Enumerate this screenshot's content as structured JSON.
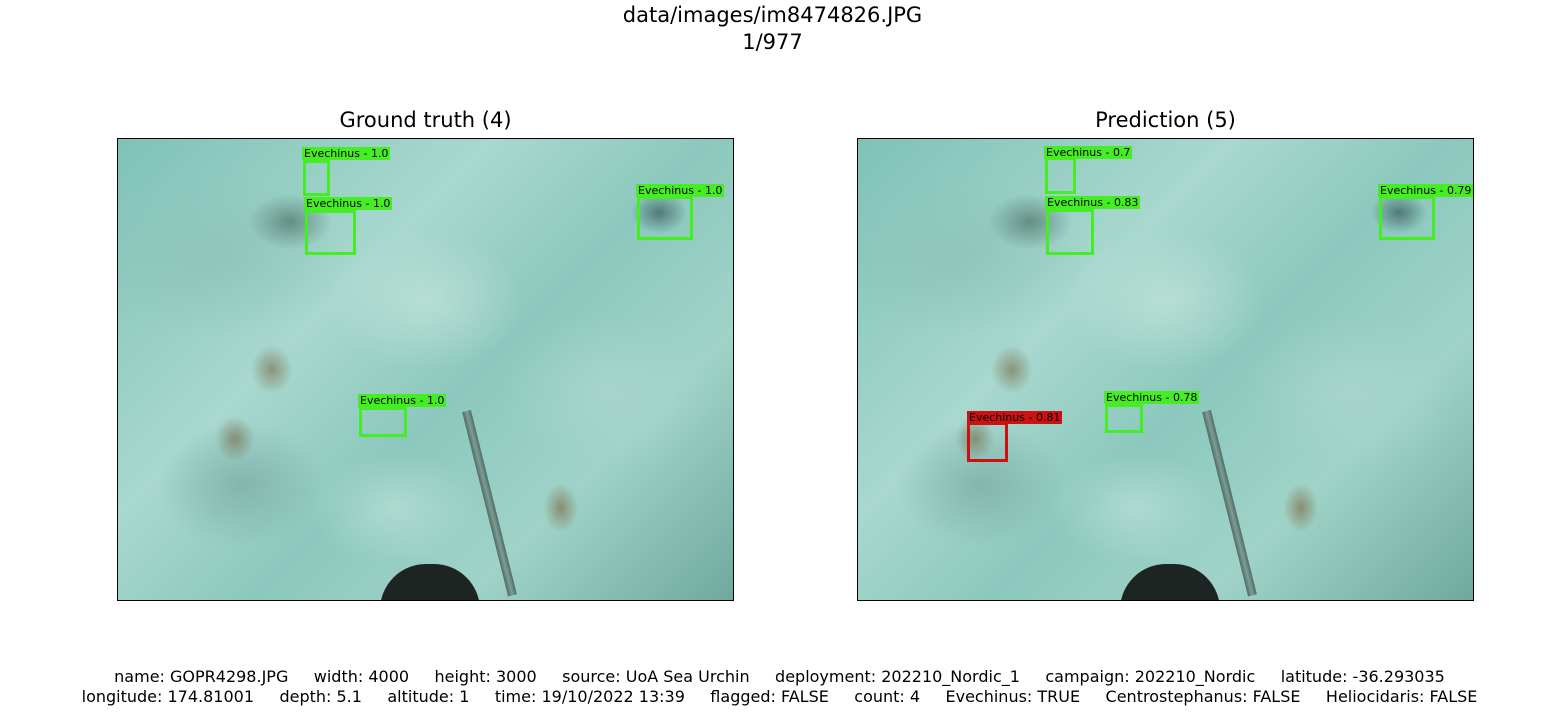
{
  "figure": {
    "path": "data/images/im8474826.JPG",
    "index": "1/977"
  },
  "panels": {
    "ground_truth": {
      "title": "Ground truth (4)",
      "boxes": [
        {
          "label": "Evechinus - 1.0",
          "color": "#44ee22"
        },
        {
          "label": "Evechinus - 1.0",
          "color": "#44ee22"
        },
        {
          "label": "Evechinus - 1.0",
          "color": "#44ee22"
        },
        {
          "label": "Evechinus - 1.0",
          "color": "#44ee22"
        }
      ]
    },
    "prediction": {
      "title": "Prediction (5)",
      "boxes": [
        {
          "label": "Evechinus - 0.7",
          "color": "#44ee22"
        },
        {
          "label": "Evechinus - 0.83",
          "color": "#44ee22"
        },
        {
          "label": "Evechinus - 0.79",
          "color": "#44ee22"
        },
        {
          "label": "Evechinus - 0.78",
          "color": "#44ee22"
        },
        {
          "label": "Evechinus - 0.81",
          "color": "#cc1111"
        }
      ]
    }
  },
  "metadata": {
    "line1": "name: GOPR4298.JPG     width: 4000     height: 3000     source: UoA Sea Urchin     deployment: 202210_Nordic_1     campaign: 202210_Nordic     latitude: -36.293035",
    "line2": "longitude: 174.81001     depth: 5.1     altitude: 1     time: 19/10/2022 13:39     flagged: FALSE     count: 4     Evechinus: TRUE     Centrostephanus: FALSE     Heliocidaris: FALSE"
  }
}
